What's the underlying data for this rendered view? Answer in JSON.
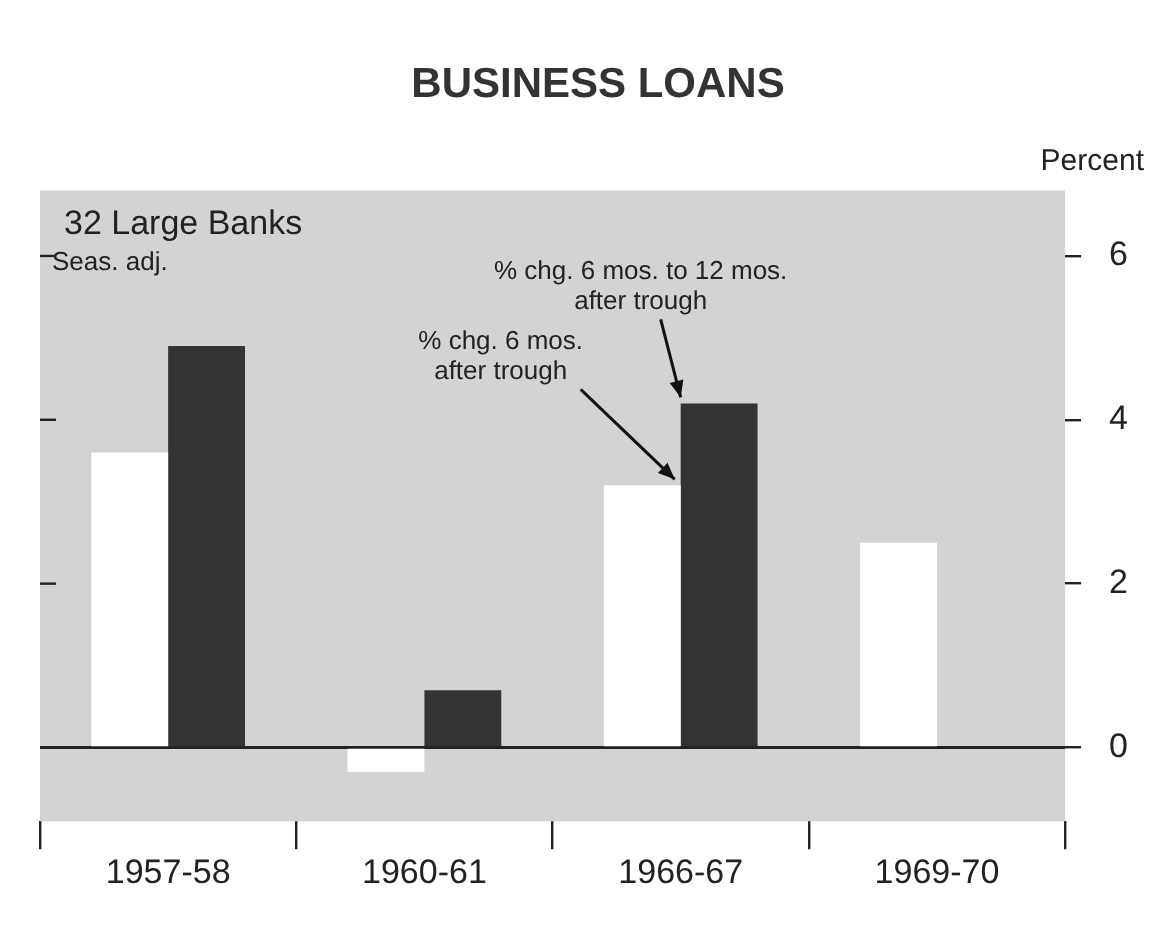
{
  "chart_data": {
    "type": "bar",
    "title": "BUSINESS LOANS",
    "ylabel": "Percent",
    "categories": [
      "1957-58",
      "1960-61",
      "1966-67",
      "1969-70"
    ],
    "series": [
      {
        "color": "#ffffff",
        "values": [
          3.6,
          -0.3,
          3.2,
          2.5
        ]
      },
      {
        "color": "#333333",
        "values": [
          4.9,
          0.7,
          4.2,
          null
        ]
      }
    ],
    "ylim": [
      -0.9,
      6.8
    ],
    "yticks": [
      0,
      2,
      4,
      6
    ],
    "ref_lines": [
      {
        "axis": "y",
        "value": 0
      }
    ],
    "annotations": [
      "32 Large Banks",
      "Seas. adj.",
      {
        "text": "% chg. 6 mos. after trough",
        "x": "1966-67",
        "y": 3.2
      },
      {
        "text": "% chg. 6 mos. to 12 mos. after trough",
        "x": "1966-67",
        "y": 4.2
      }
    ],
    "grid": false,
    "legend": false
  }
}
